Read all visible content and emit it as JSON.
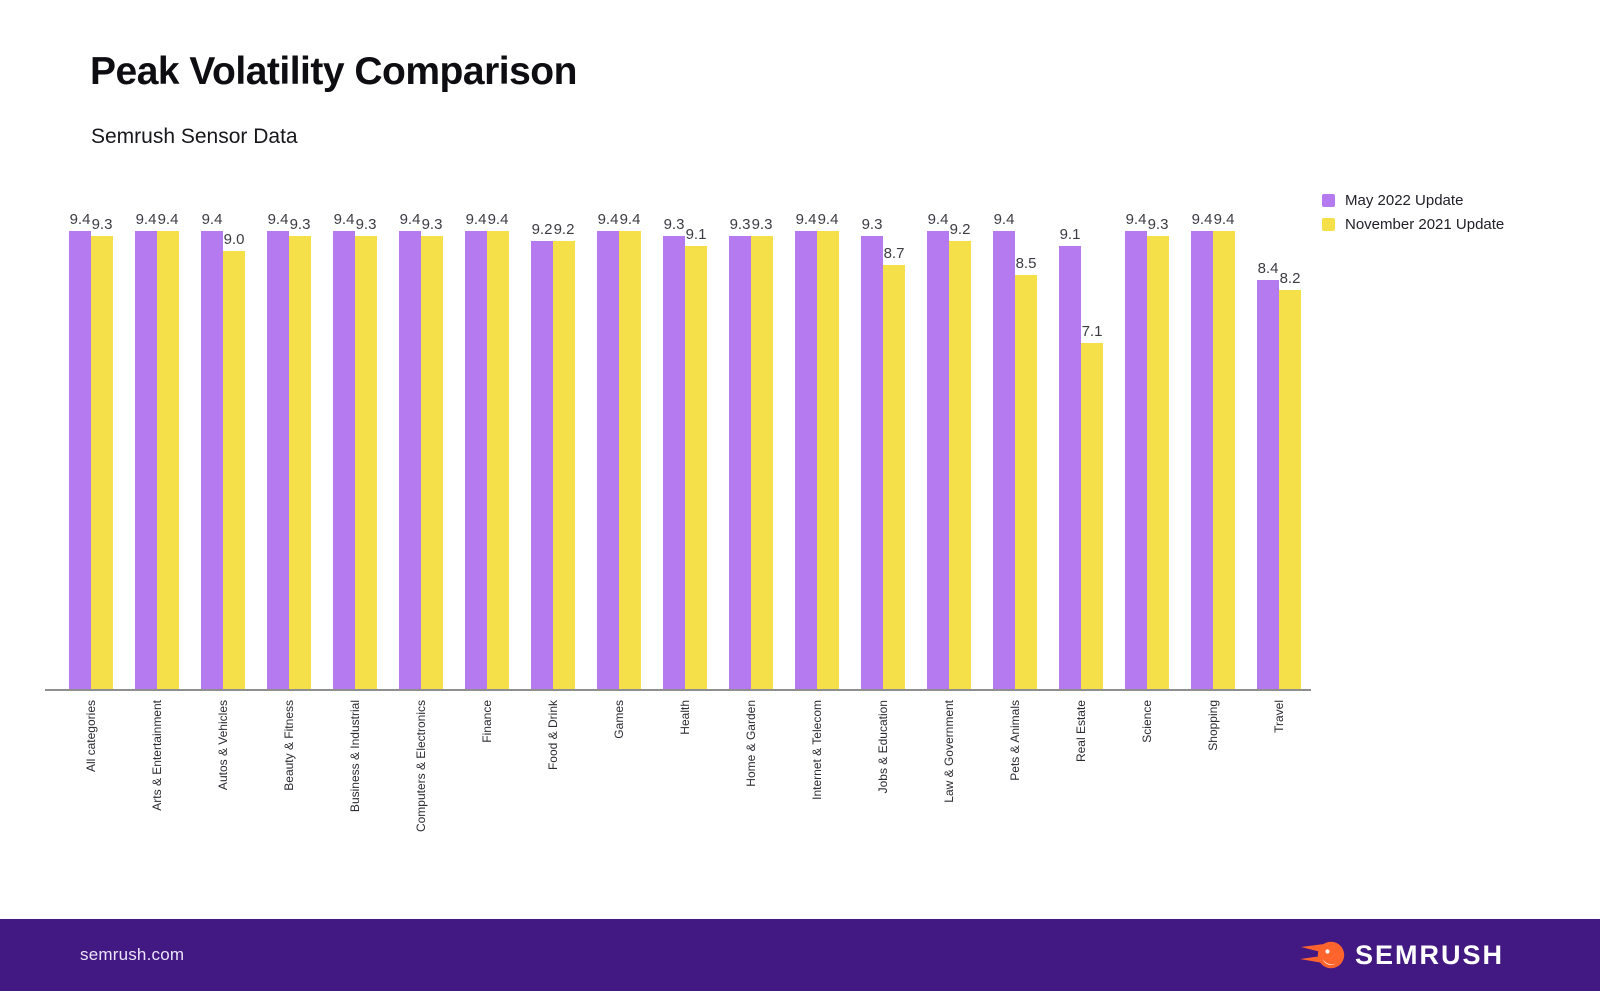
{
  "header": {
    "title": "Peak Volatility Comparison",
    "subtitle": "Semrush Sensor Data"
  },
  "chart_data": {
    "type": "bar",
    "title": "Peak Volatility Comparison",
    "subtitle": "Semrush Sensor Data",
    "categories": [
      "All categories",
      "Arts & Entertainment",
      "Autos & Vehicles",
      "Beauty & Fitness",
      "Business & Industrial",
      "Computers & Electronics",
      "Finance",
      "Food & Drink",
      "Games",
      "Health",
      "Home & Garden",
      "Internet & Telecom",
      "Jobs & Education",
      "Law & Government",
      "Pets & Animals",
      "Real Estate",
      "Science",
      "Shopping",
      "Travel"
    ],
    "series": [
      {
        "name": "May 2022 Update",
        "color": "#b57af0",
        "values": [
          9.4,
          9.4,
          9.4,
          9.4,
          9.4,
          9.4,
          9.4,
          9.2,
          9.4,
          9.3,
          9.3,
          9.4,
          9.3,
          9.4,
          9.4,
          9.1,
          9.4,
          9.4,
          8.4
        ]
      },
      {
        "name": "November 2021 Update",
        "color": "#f5e04a",
        "values": [
          9.3,
          9.4,
          9.0,
          9.3,
          9.3,
          9.3,
          9.4,
          9.2,
          9.4,
          9.1,
          9.3,
          9.4,
          8.7,
          9.2,
          8.5,
          7.1,
          9.3,
          9.4,
          8.2
        ]
      }
    ],
    "ylim": [
      0,
      9.4
    ],
    "grid": false,
    "value_labels": true,
    "legend_position": "top-right",
    "axis_color": "#8f8f8f"
  },
  "footer": {
    "site": "semrush.com",
    "logo_text": "SEMRUSH",
    "background": "#421983",
    "text_color": "#ece3f8",
    "logo_orange": "#ff642d"
  }
}
